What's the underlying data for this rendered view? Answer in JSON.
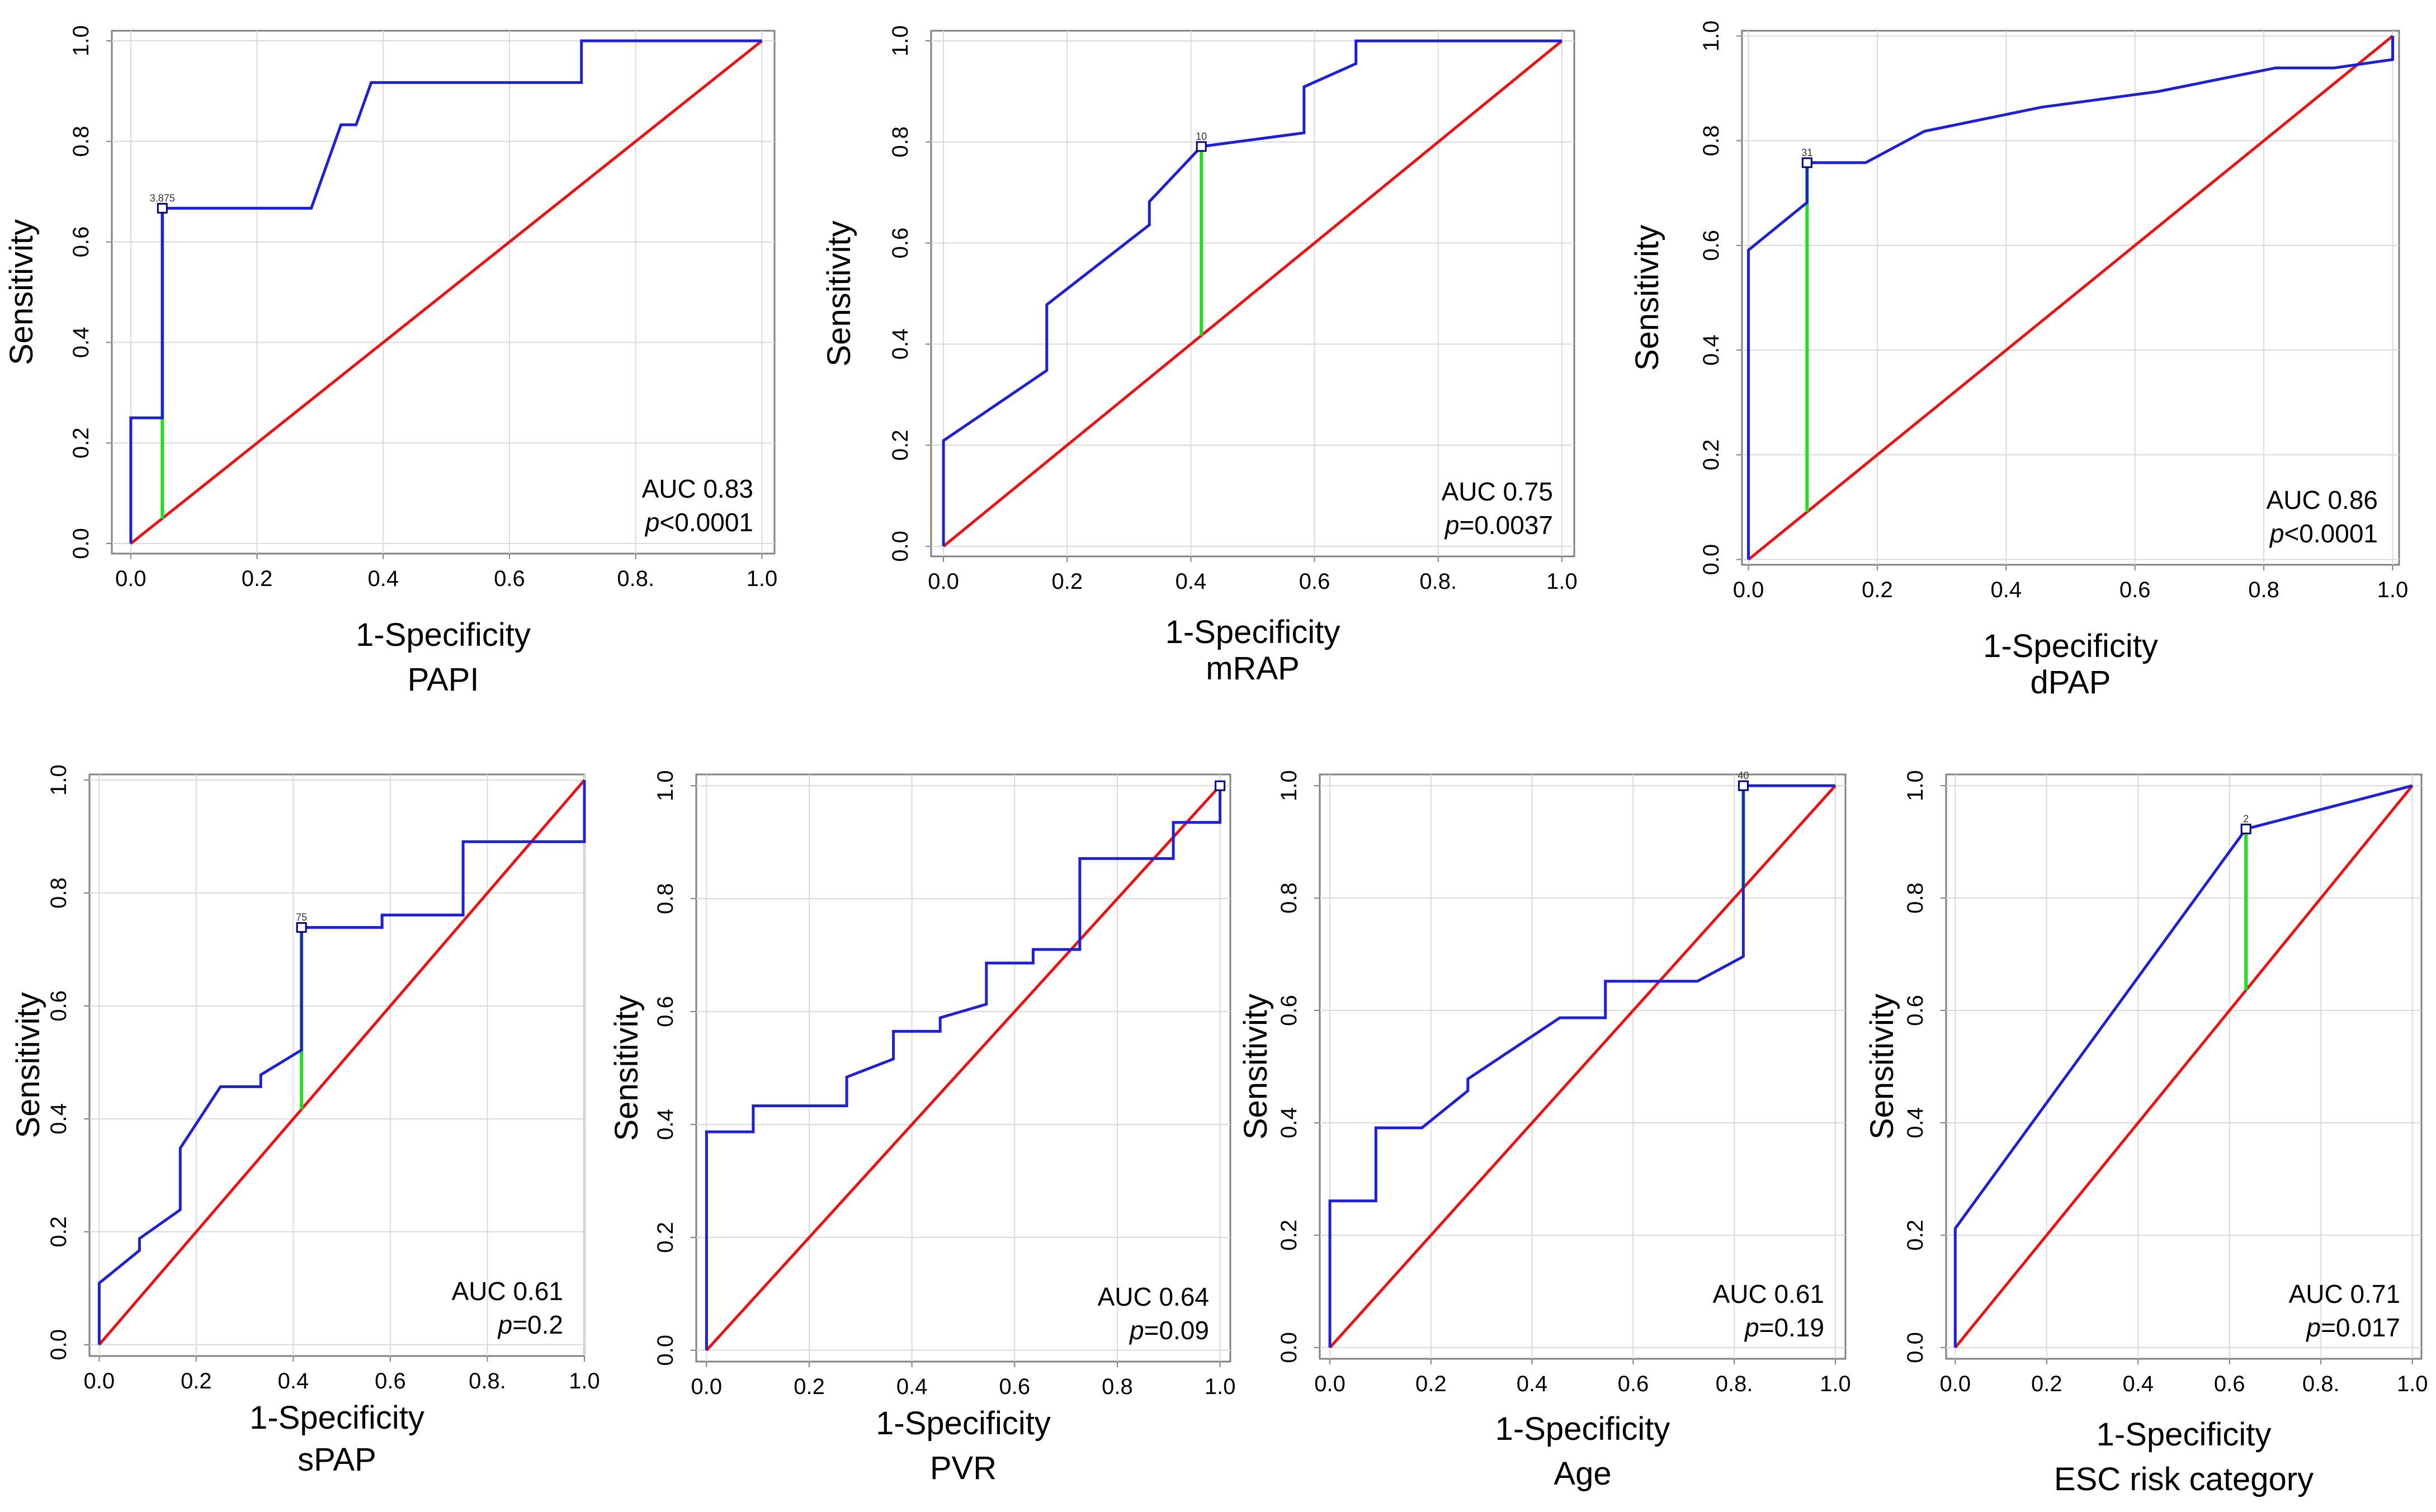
{
  "colors": {
    "roc": "#1f1fd6",
    "diagonal": "#ee1111",
    "youden": "#22dd22"
  },
  "chart_data": [
    {
      "type": "line",
      "title": "PAPI",
      "xlabel": "1-Specificity",
      "ylabel": "Sensitivity",
      "xlim": [
        -0.03,
        1.02
      ],
      "ylim": [
        -0.02,
        1.02
      ],
      "x_ticks": [
        {
          "v": 0.0,
          "t": "0.0"
        },
        {
          "v": 0.2,
          "t": "0.2"
        },
        {
          "v": 0.4,
          "t": "0.4"
        },
        {
          "v": 0.6,
          "t": "0.6"
        },
        {
          "v": 0.8,
          "t": "0.8."
        },
        {
          "v": 1.0,
          "t": "1.0"
        }
      ],
      "y_ticks": [
        {
          "v": 0.0,
          "t": "0.0"
        },
        {
          "v": 0.2,
          "t": "0.2"
        },
        {
          "v": 0.4,
          "t": "0.4"
        },
        {
          "v": 0.6,
          "t": "0.6"
        },
        {
          "v": 0.8,
          "t": "0.8"
        },
        {
          "v": 1.0,
          "t": "1.0"
        }
      ],
      "auc_label": "AUC 0.83",
      "p_prefix": "p",
      "p_rest": "<0.0001",
      "cutoff_label": "3.875",
      "cutoff": {
        "x": 0.05,
        "y": 0.667
      },
      "roc": {
        "x": [
          0,
          0,
          0.05,
          0.05,
          0.05,
          0.286,
          0.333,
          0.357,
          0.381,
          0.714,
          0.714,
          1.0
        ],
        "y": [
          0,
          0.25,
          0.25,
          0.667,
          0.667,
          0.667,
          0.833,
          0.833,
          0.917,
          0.917,
          1.0,
          1.0
        ]
      }
    },
    {
      "type": "line",
      "title": "mRAP",
      "xlabel": "1-Specificity",
      "ylabel": "Sensitivity",
      "xlim": [
        -0.02,
        1.02
      ],
      "ylim": [
        -0.02,
        1.02
      ],
      "x_ticks": [
        {
          "v": 0.0,
          "t": "0.0"
        },
        {
          "v": 0.2,
          "t": "0.2"
        },
        {
          "v": 0.4,
          "t": "0.4"
        },
        {
          "v": 0.6,
          "t": "0.6"
        },
        {
          "v": 0.8,
          "t": "0.8."
        },
        {
          "v": 1.0,
          "t": "1.0"
        }
      ],
      "y_ticks": [
        {
          "v": 0.0,
          "t": "0.0"
        },
        {
          "v": 0.2,
          "t": "0.2"
        },
        {
          "v": 0.4,
          "t": "0.4"
        },
        {
          "v": 0.6,
          "t": "0.6"
        },
        {
          "v": 0.8,
          "t": "0.8"
        },
        {
          "v": 1.0,
          "t": "1.0"
        }
      ],
      "auc_label": "AUC 0.75",
      "p_prefix": "p",
      "p_rest": "=0.0037",
      "cutoff_label": "10",
      "cutoff": {
        "x": 0.417,
        "y": 0.791
      },
      "roc": {
        "x": [
          0,
          0,
          0.167,
          0.167,
          0.333,
          0.333,
          0.417,
          0.583,
          0.583,
          0.667,
          0.667,
          1.0
        ],
        "y": [
          0,
          0.209,
          0.348,
          0.478,
          0.636,
          0.682,
          0.791,
          0.818,
          0.909,
          0.955,
          1.0,
          1.0
        ]
      }
    },
    {
      "type": "line",
      "title": "dPAP",
      "xlabel": "1-Specificity",
      "ylabel": "Sensitivity",
      "xlim": [
        -0.01,
        1.01
      ],
      "ylim": [
        -0.01,
        1.01
      ],
      "x_ticks": [
        {
          "v": 0.0,
          "t": "0.0"
        },
        {
          "v": 0.2,
          "t": "0.2"
        },
        {
          "v": 0.4,
          "t": "0.4"
        },
        {
          "v": 0.6,
          "t": "0.6"
        },
        {
          "v": 0.8,
          "t": "0.8"
        },
        {
          "v": 1.0,
          "t": "1.0"
        }
      ],
      "y_ticks": [
        {
          "v": 0.0,
          "t": "0.0"
        },
        {
          "v": 0.2,
          "t": "0.2"
        },
        {
          "v": 0.4,
          "t": "0.4"
        },
        {
          "v": 0.6,
          "t": "0.6"
        },
        {
          "v": 0.8,
          "t": "0.8"
        },
        {
          "v": 1.0,
          "t": "1.0"
        }
      ],
      "auc_label": "AUC  0.86",
      "p_prefix": "p",
      "p_rest": "<0.0001",
      "cutoff_label": "31",
      "cutoff": {
        "x": 0.091,
        "y": 0.758
      },
      "roc": {
        "x": [
          0,
          0,
          0.091,
          0.091,
          0.182,
          0.273,
          0.455,
          0.636,
          0.818,
          0.909,
          1.0,
          1.0
        ],
        "y": [
          0,
          0.591,
          0.682,
          0.758,
          0.758,
          0.818,
          0.864,
          0.894,
          0.939,
          0.939,
          0.955,
          1.0
        ]
      }
    },
    {
      "type": "line",
      "title": "sPAP",
      "xlabel": "1-Specificity",
      "ylabel": "Sensitivity",
      "xlim": [
        -0.02,
        1.0
      ],
      "ylim": [
        -0.02,
        1.01
      ],
      "x_ticks": [
        {
          "v": 0.0,
          "t": "0.0"
        },
        {
          "v": 0.2,
          "t": "0.2"
        },
        {
          "v": 0.4,
          "t": "0.4"
        },
        {
          "v": 0.6,
          "t": "0.6"
        },
        {
          "v": 0.8,
          "t": "0.8."
        },
        {
          "v": 1.0,
          "t": "1.0"
        }
      ],
      "y_ticks": [
        {
          "v": 0.0,
          "t": "0.0"
        },
        {
          "v": 0.2,
          "t": "0.2"
        },
        {
          "v": 0.4,
          "t": "0.4"
        },
        {
          "v": 0.6,
          "t": "0.6"
        },
        {
          "v": 0.8,
          "t": "0.8"
        },
        {
          "v": 1.0,
          "t": "1.0"
        }
      ],
      "auc_label": "AUC 0.61",
      "p_prefix": "p",
      "p_rest": "=0.2",
      "cutoff_label": "75",
      "cutoff": {
        "x": 0.417,
        "y": 0.739
      },
      "roc": {
        "x": [
          0,
          0,
          0.083,
          0.083,
          0.167,
          0.167,
          0.25,
          0.333,
          0.333,
          0.417,
          0.417,
          0.583,
          0.583,
          0.75,
          0.75,
          1.0,
          1.0
        ],
        "y": [
          0,
          0.109,
          0.167,
          0.188,
          0.239,
          0.348,
          0.457,
          0.457,
          0.478,
          0.522,
          0.739,
          0.739,
          0.761,
          0.761,
          0.891,
          0.891,
          1.0
        ]
      }
    },
    {
      "type": "line",
      "title": "PVR",
      "xlabel": "1-Specificity",
      "ylabel": "Sensitivity",
      "xlim": [
        -0.02,
        1.02
      ],
      "ylim": [
        -0.02,
        1.02
      ],
      "x_ticks": [
        {
          "v": 0.0,
          "t": "0.0"
        },
        {
          "v": 0.2,
          "t": "0.2"
        },
        {
          "v": 0.4,
          "t": "0.4"
        },
        {
          "v": 0.6,
          "t": "0.6"
        },
        {
          "v": 0.8,
          "t": "0.8"
        },
        {
          "v": 1.0,
          "t": "1.0"
        }
      ],
      "y_ticks": [
        {
          "v": 0.0,
          "t": "0.0"
        },
        {
          "v": 0.2,
          "t": "0.2"
        },
        {
          "v": 0.4,
          "t": "0.4"
        },
        {
          "v": 0.6,
          "t": "0.6"
        },
        {
          "v": 0.8,
          "t": "0.8"
        },
        {
          "v": 1.0,
          "t": "1.0"
        }
      ],
      "auc_label": "AUC 0.64",
      "p_prefix": "p",
      "p_rest": "=0.09",
      "cutoff_label": "",
      "cutoff": {
        "x": 1.0,
        "y": 1.0
      },
      "roc": {
        "x": [
          0,
          0,
          0.091,
          0.091,
          0.273,
          0.273,
          0.364,
          0.364,
          0.455,
          0.455,
          0.545,
          0.545,
          0.636,
          0.636,
          0.727,
          0.727,
          0.909,
          0.909,
          1.0,
          1.0
        ],
        "y": [
          0,
          0.387,
          0.387,
          0.433,
          0.433,
          0.484,
          0.516,
          0.565,
          0.565,
          0.589,
          0.613,
          0.686,
          0.686,
          0.71,
          0.71,
          0.871,
          0.871,
          0.935,
          0.935,
          1.0
        ]
      }
    },
    {
      "type": "line",
      "title": "Age",
      "xlabel": "1-Specificity",
      "ylabel": "Sensitivity",
      "xlim": [
        -0.02,
        1.02
      ],
      "ylim": [
        -0.02,
        1.02
      ],
      "x_ticks": [
        {
          "v": 0.0,
          "t": "0.0"
        },
        {
          "v": 0.2,
          "t": "0.2"
        },
        {
          "v": 0.4,
          "t": "0.4"
        },
        {
          "v": 0.6,
          "t": "0.6"
        },
        {
          "v": 0.8,
          "t": "0.8."
        },
        {
          "v": 1.0,
          "t": "1.0"
        }
      ],
      "y_ticks": [
        {
          "v": 0.0,
          "t": "0.0"
        },
        {
          "v": 0.2,
          "t": "0.2"
        },
        {
          "v": 0.4,
          "t": "0.4"
        },
        {
          "v": 0.6,
          "t": "0.6"
        },
        {
          "v": 0.8,
          "t": "0.8"
        },
        {
          "v": 1.0,
          "t": "1.0"
        }
      ],
      "auc_label": "AUC 0.61",
      "p_prefix": "p",
      "p_rest": "=0.19",
      "cutoff_label": "40",
      "cutoff": {
        "x": 0.818,
        "y": 1.0
      },
      "roc": {
        "x": [
          0,
          0,
          0.091,
          0.091,
          0.182,
          0.273,
          0.273,
          0.455,
          0.545,
          0.545,
          0.727,
          0.818,
          0.818,
          1.0
        ],
        "y": [
          0,
          0.261,
          0.261,
          0.391,
          0.391,
          0.457,
          0.478,
          0.587,
          0.587,
          0.652,
          0.652,
          0.696,
          1.0,
          1.0
        ]
      }
    },
    {
      "type": "line",
      "title": "ESC risk category",
      "xlabel": "1-Specificity",
      "ylabel": "Sensitivity",
      "xlim": [
        -0.02,
        1.02
      ],
      "ylim": [
        -0.02,
        1.02
      ],
      "x_ticks": [
        {
          "v": 0.0,
          "t": "0.0"
        },
        {
          "v": 0.2,
          "t": "0.2"
        },
        {
          "v": 0.4,
          "t": "0.4"
        },
        {
          "v": 0.6,
          "t": "0.6"
        },
        {
          "v": 0.8,
          "t": "0.8."
        },
        {
          "v": 1.0,
          "t": "1.0"
        }
      ],
      "y_ticks": [
        {
          "v": 0.0,
          "t": "0.0"
        },
        {
          "v": 0.2,
          "t": "0.2"
        },
        {
          "v": 0.4,
          "t": "0.4"
        },
        {
          "v": 0.6,
          "t": "0.6"
        },
        {
          "v": 0.8,
          "t": "0.8"
        },
        {
          "v": 1.0,
          "t": "1.0"
        }
      ],
      "auc_label": "AUC 0.71",
      "p_prefix": "p",
      "p_rest": "=0.017",
      "cutoff_label": "2",
      "cutoff": {
        "x": 0.636,
        "y": 0.923
      },
      "roc": {
        "x": [
          0,
          0,
          0.636,
          1.0
        ],
        "y": [
          0,
          0.212,
          0.923,
          1.0
        ]
      }
    }
  ]
}
